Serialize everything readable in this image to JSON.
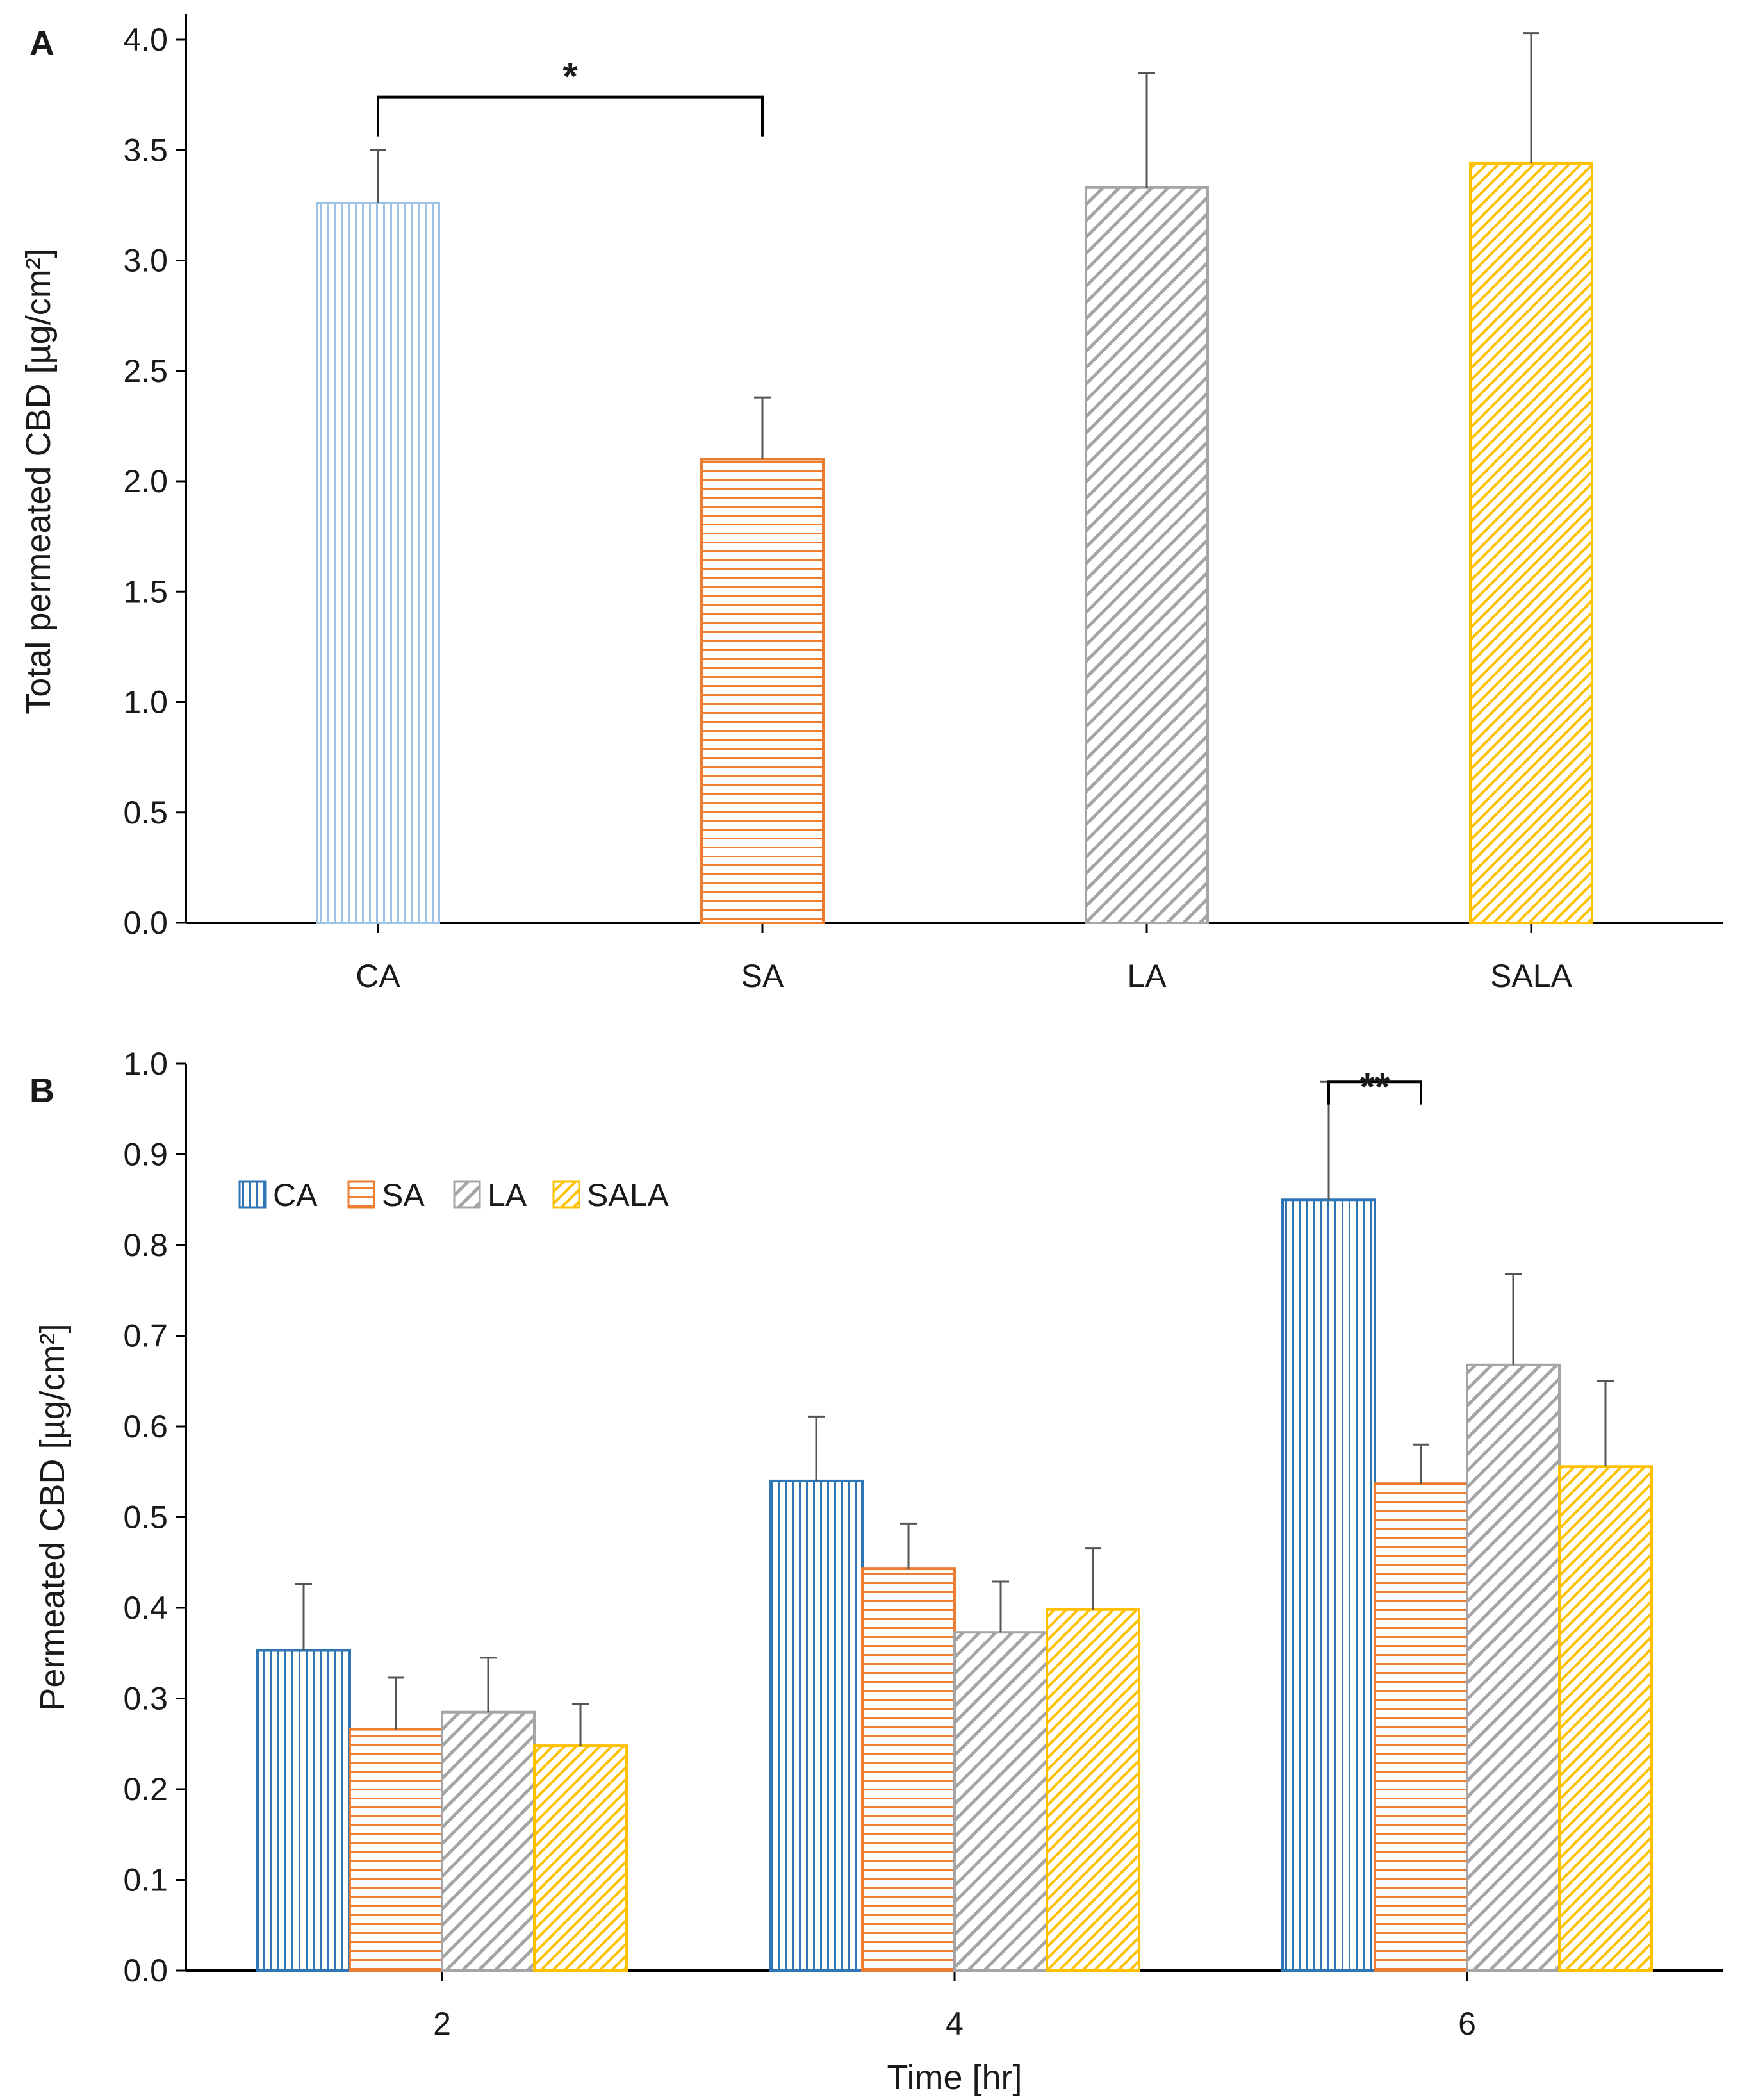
{
  "panels": {
    "a": {
      "letter": "A"
    },
    "b": {
      "letter": "B"
    }
  },
  "chart_data": [
    {
      "type": "bar",
      "panel": "A",
      "title": "",
      "xlabel": "",
      "ylabel": "Total permeated CBD [µg/cm²]",
      "ylim": [
        0,
        4.0
      ],
      "yticks": [
        0.0,
        0.5,
        1.0,
        1.5,
        2.0,
        2.5,
        3.0,
        3.5,
        4.0
      ],
      "ytick_labels": [
        "0.0",
        "0.5",
        "1.0",
        "1.5",
        "2.0",
        "2.5",
        "3.0",
        "3.5",
        "4.0"
      ],
      "categories": [
        "CA",
        "SA",
        "LA",
        "SALA"
      ],
      "values": [
        3.26,
        2.1,
        3.33,
        3.44
      ],
      "errors": [
        0.24,
        0.28,
        0.52,
        0.59
      ],
      "colors": [
        "#9dc3e6",
        "#ed7d31",
        "#a5a5a5",
        "#ffc000"
      ],
      "patterns": [
        "vertical",
        "horizontal",
        "diagonal",
        "diagonal"
      ],
      "significance": [
        {
          "from": 0,
          "to": 1,
          "label": "*"
        }
      ],
      "grid": false,
      "legend": null
    },
    {
      "type": "bar",
      "panel": "B",
      "title": "",
      "xlabel": "Time [hr]",
      "ylabel": "Permeated CBD [µg/cm²]",
      "ylim": [
        0,
        1.0
      ],
      "yticks": [
        0.0,
        0.1,
        0.2,
        0.3,
        0.4,
        0.5,
        0.6,
        0.7,
        0.8,
        0.9,
        1.0
      ],
      "ytick_labels": [
        "0.0",
        "0.1",
        "0.2",
        "0.3",
        "0.4",
        "0.5",
        "0.6",
        "0.7",
        "0.8",
        "0.9",
        "1.0"
      ],
      "categories": [
        "2",
        "4",
        "6"
      ],
      "series": [
        {
          "name": "CA",
          "values": [
            0.353,
            0.54,
            0.85
          ],
          "errors": [
            0.073,
            0.071,
            0.13
          ],
          "color": "#2e75b6",
          "pattern": "vertical"
        },
        {
          "name": "SA",
          "values": [
            0.266,
            0.443,
            0.537
          ],
          "errors": [
            0.057,
            0.05,
            0.043
          ],
          "color": "#ed7d31",
          "pattern": "horizontal"
        },
        {
          "name": "LA",
          "values": [
            0.285,
            0.373,
            0.668
          ],
          "errors": [
            0.06,
            0.056,
            0.1
          ],
          "color": "#a5a5a5",
          "pattern": "diagonal"
        },
        {
          "name": "SALA",
          "values": [
            0.248,
            0.398,
            0.556
          ],
          "errors": [
            0.046,
            0.068,
            0.094
          ],
          "color": "#ffc000",
          "pattern": "diagonal"
        }
      ],
      "significance": [
        {
          "category": 2,
          "from": 0,
          "to": 1,
          "label": "**"
        }
      ],
      "grid": false,
      "legend": "top-left"
    }
  ]
}
